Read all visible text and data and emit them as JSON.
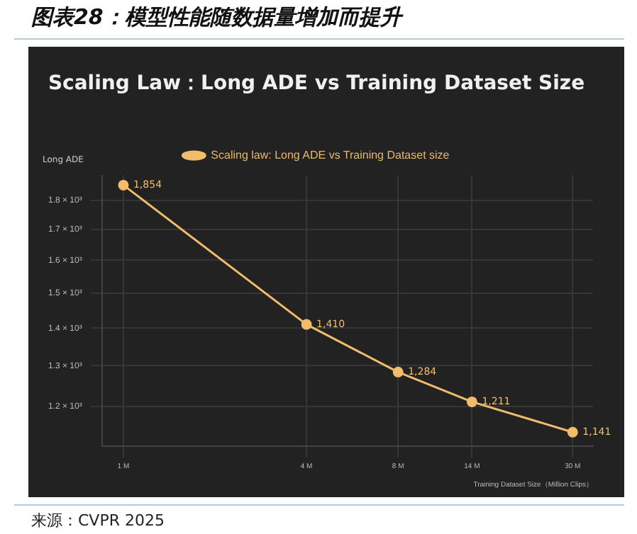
{
  "chart_data": {
    "type": "line",
    "title": "Scaling Law：Long ADE vs Training Dataset Size",
    "xlabel": "Training Dataset Size（Million Clips）",
    "ylabel": "Long ADE",
    "x": [
      1,
      4,
      8,
      14,
      30
    ],
    "series": [
      {
        "name": "Scaling law: Long ADE vs Training Dataset size",
        "color": "#f2bd6b",
        "values": [
          1854,
          1410,
          1284,
          1211,
          1141
        ],
        "value_labels": [
          "1,854",
          "1,410",
          "1,284",
          "1,211",
          "1,141"
        ]
      }
    ],
    "log": "xy",
    "xlim": [
      0.85,
      35
    ],
    "ylim": [
      1110,
      1890
    ],
    "xticks": [
      {
        "value": 1,
        "label": "1 M"
      },
      {
        "value": 4,
        "label": "4 M"
      },
      {
        "value": 8,
        "label": "8 M"
      },
      {
        "value": 14,
        "label": "14 M"
      },
      {
        "value": 30,
        "label": "30 M"
      }
    ],
    "yticks": [
      {
        "value": 1200,
        "label": "1.2 × 10³"
      },
      {
        "value": 1300,
        "label": "1.3 × 10³"
      },
      {
        "value": 1400,
        "label": "1.4 × 10³"
      },
      {
        "value": 1500,
        "label": "1.5 × 10³"
      },
      {
        "value": 1600,
        "label": "1.6 × 10³"
      },
      {
        "value": 1700,
        "label": "1.7 × 10³"
      },
      {
        "value": 1800,
        "label": "1.8 × 10³"
      }
    ],
    "grid": true,
    "legend": "top",
    "marker": "circle",
    "line_style": "solid",
    "annotations": [
      "图表28：模型性能随数据量增加而提升",
      "来源：CVPR 2025"
    ]
  }
}
